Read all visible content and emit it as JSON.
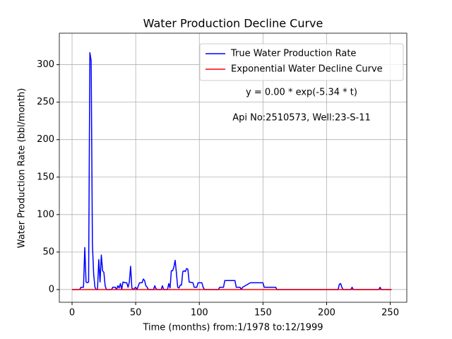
{
  "chart_data": {
    "type": "line",
    "title": "Water Production Decline Curve",
    "xlabel": "Time (months) from:1/1978 to:12/1999",
    "ylabel": "Water Production Rate (bbl/month)",
    "annotations": [
      "y = 0.00 * exp(-5.34 * t)",
      "Api No:2510573, Well:23-S-11"
    ],
    "x": [
      0,
      6,
      7,
      9,
      10,
      11,
      12,
      13,
      14,
      15,
      16,
      17,
      18,
      19,
      20,
      21,
      22,
      23,
      24,
      25,
      26,
      27,
      31,
      32,
      34,
      35,
      36,
      37,
      38,
      39,
      40,
      42,
      43,
      44,
      45,
      46,
      47,
      48,
      50,
      51,
      53,
      55,
      56,
      57,
      58,
      59,
      60,
      64,
      65,
      66,
      67,
      70,
      71,
      72,
      75,
      76,
      77,
      78,
      79,
      80,
      81,
      82,
      83,
      84,
      85,
      86,
      87,
      88,
      89,
      90,
      91,
      92,
      95,
      96,
      98,
      99,
      102,
      103,
      104,
      115,
      116,
      119,
      120,
      128,
      129,
      132,
      133,
      134,
      137,
      140,
      150,
      151,
      160,
      161,
      209,
      210,
      211,
      212,
      213,
      219,
      220,
      221,
      241,
      242,
      243,
      251
    ],
    "series": [
      {
        "name": "True Water Production Rate",
        "color": "#0000ff",
        "values": [
          0,
          0,
          3,
          3,
          56,
          10,
          9,
          10,
          316,
          305,
          60,
          20,
          3,
          0,
          0,
          40,
          10,
          46,
          25,
          23,
          5,
          0,
          0,
          3,
          3,
          0,
          5,
          2,
          8,
          0,
          10,
          9,
          9,
          3,
          10,
          31,
          2,
          0,
          3,
          0,
          9,
          9,
          14,
          12,
          5,
          3,
          0,
          0,
          5,
          1,
          0,
          0,
          5,
          0,
          0,
          8,
          2,
          25,
          25,
          30,
          39,
          22,
          3,
          2,
          6,
          6,
          24,
          25,
          24,
          28,
          27,
          10,
          9,
          3,
          3,
          9,
          9,
          3,
          0,
          0,
          3,
          3,
          12,
          12,
          3,
          3,
          0,
          3,
          6,
          9,
          9,
          3,
          3,
          0,
          0,
          7,
          8,
          3,
          0,
          0,
          3,
          0,
          0,
          3,
          0,
          0
        ]
      },
      {
        "name": "Exponential Water Decline Curve",
        "color": "#ff0000",
        "values": [
          0,
          0,
          0,
          0,
          0,
          0,
          0,
          0,
          0,
          0,
          0,
          0,
          0,
          0,
          0,
          0,
          0,
          0,
          0,
          0,
          0,
          0,
          0,
          0,
          0,
          0,
          0,
          0,
          0,
          0,
          0,
          0,
          0,
          0,
          0,
          0,
          0,
          0,
          0,
          0,
          0,
          0,
          0,
          0,
          0,
          0,
          0,
          0,
          0,
          0,
          0,
          0,
          0,
          0,
          0,
          0,
          0,
          0,
          0,
          0,
          0,
          0,
          0,
          0,
          0,
          0,
          0,
          0,
          0,
          0,
          0,
          0,
          0,
          0,
          0,
          0,
          0,
          0,
          0,
          0,
          0,
          0,
          0,
          0,
          0,
          0,
          0,
          0,
          0,
          0,
          0,
          0,
          0,
          0,
          0,
          0,
          0,
          0,
          0,
          0,
          0,
          0,
          0,
          0,
          0,
          0
        ]
      }
    ],
    "xlim": [
      -10,
      263
    ],
    "ylim": [
      -17,
      342
    ],
    "xticks": [
      0,
      50,
      100,
      150,
      200,
      250
    ],
    "yticks": [
      0,
      50,
      100,
      150,
      200,
      250,
      300
    ],
    "grid": true,
    "legend": "upper right"
  }
}
